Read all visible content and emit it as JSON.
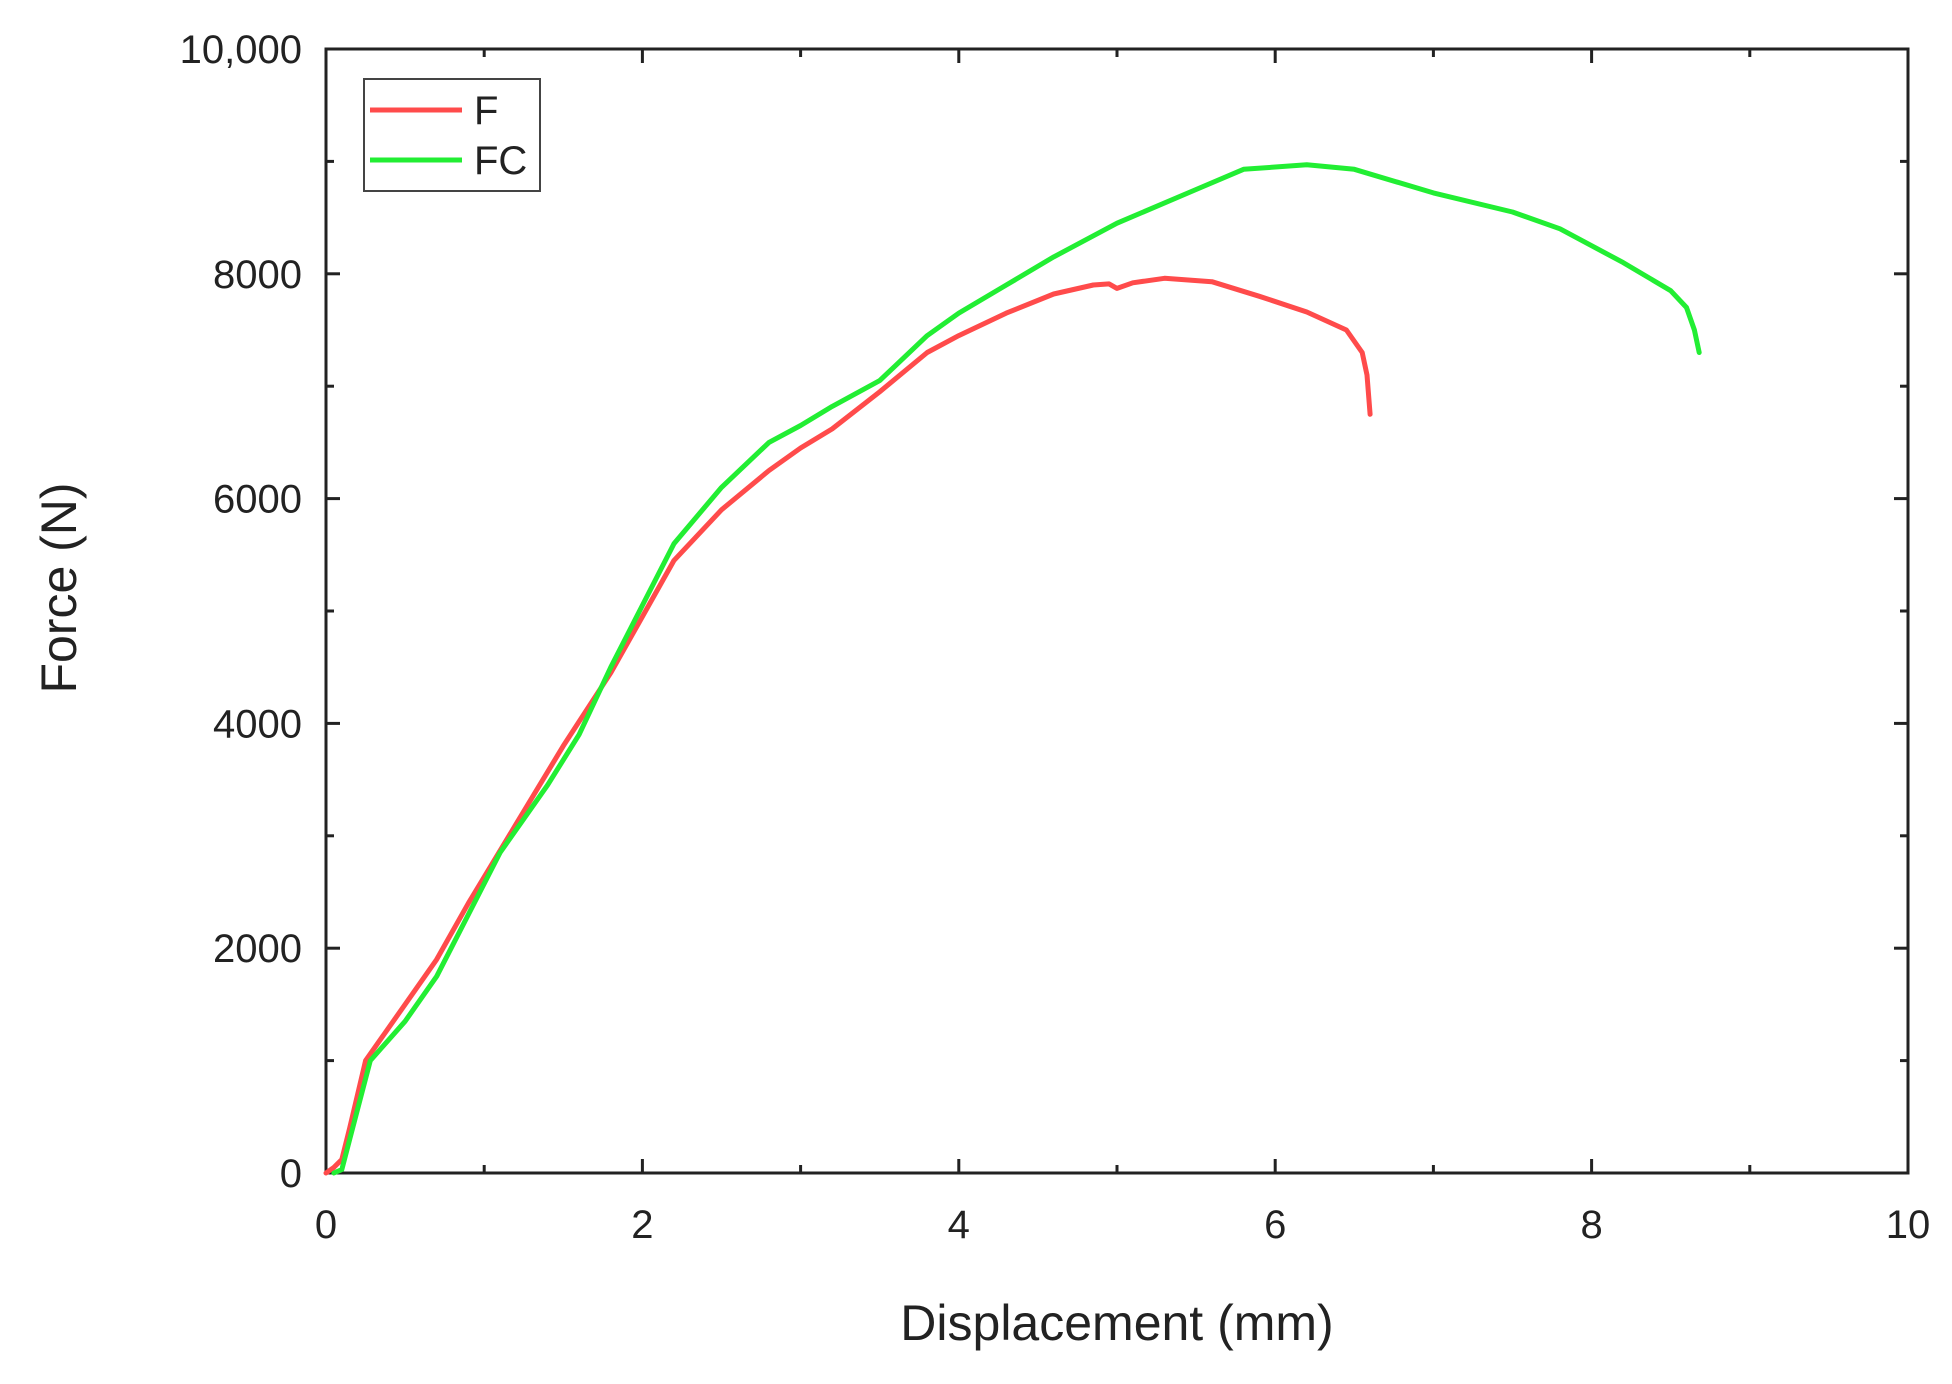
{
  "chart_data": {
    "type": "line",
    "title": "",
    "xlabel": "Displacement (mm)",
    "ylabel": "Force (N)",
    "xlim": [
      0,
      10
    ],
    "ylim": [
      0,
      10000
    ],
    "x_ticks": [
      0,
      2,
      4,
      6,
      8,
      10
    ],
    "x_tick_labels": [
      "0",
      "2",
      "4",
      "6",
      "8",
      "10"
    ],
    "y_ticks": [
      0,
      2000,
      4000,
      6000,
      8000,
      10000
    ],
    "y_tick_labels": [
      "0",
      "2000",
      "4000",
      "6000",
      "8000",
      "10,000"
    ],
    "grid": false,
    "legend_position": "top-left",
    "series": [
      {
        "name": "F",
        "color": "#ff4b4b",
        "points": [
          [
            0,
            0
          ],
          [
            0.05,
            50
          ],
          [
            0.1,
            120
          ],
          [
            0.15,
            400
          ],
          [
            0.25,
            1000
          ],
          [
            0.5,
            1500
          ],
          [
            0.7,
            1900
          ],
          [
            0.9,
            2400
          ],
          [
            1.2,
            3100
          ],
          [
            1.5,
            3800
          ],
          [
            1.8,
            4450
          ],
          [
            2.0,
            4950
          ],
          [
            2.2,
            5450
          ],
          [
            2.5,
            5900
          ],
          [
            2.8,
            6250
          ],
          [
            3.0,
            6450
          ],
          [
            3.2,
            6620
          ],
          [
            3.5,
            6950
          ],
          [
            3.8,
            7300
          ],
          [
            4.0,
            7450
          ],
          [
            4.3,
            7650
          ],
          [
            4.6,
            7820
          ],
          [
            4.85,
            7900
          ],
          [
            4.95,
            7910
          ],
          [
            5.0,
            7870
          ],
          [
            5.1,
            7920
          ],
          [
            5.3,
            7960
          ],
          [
            5.6,
            7930
          ],
          [
            5.9,
            7800
          ],
          [
            6.2,
            7660
          ],
          [
            6.45,
            7500
          ],
          [
            6.55,
            7300
          ],
          [
            6.58,
            7100
          ],
          [
            6.6,
            6750
          ]
        ]
      },
      {
        "name": "FC",
        "color": "#22ee33",
        "points": [
          [
            0.05,
            0
          ],
          [
            0.1,
            30
          ],
          [
            0.15,
            300
          ],
          [
            0.28,
            1000
          ],
          [
            0.5,
            1350
          ],
          [
            0.7,
            1750
          ],
          [
            0.9,
            2300
          ],
          [
            1.1,
            2850
          ],
          [
            1.4,
            3450
          ],
          [
            1.6,
            3900
          ],
          [
            1.8,
            4500
          ],
          [
            2.0,
            5050
          ],
          [
            2.2,
            5600
          ],
          [
            2.5,
            6100
          ],
          [
            2.8,
            6500
          ],
          [
            3.0,
            6650
          ],
          [
            3.2,
            6820
          ],
          [
            3.5,
            7050
          ],
          [
            3.8,
            7450
          ],
          [
            4.0,
            7650
          ],
          [
            4.3,
            7900
          ],
          [
            4.6,
            8150
          ],
          [
            5.0,
            8450
          ],
          [
            5.5,
            8750
          ],
          [
            5.8,
            8930
          ],
          [
            6.2,
            8970
          ],
          [
            6.5,
            8930
          ],
          [
            7.0,
            8720
          ],
          [
            7.5,
            8550
          ],
          [
            7.8,
            8400
          ],
          [
            8.2,
            8100
          ],
          [
            8.5,
            7850
          ],
          [
            8.6,
            7700
          ],
          [
            8.65,
            7500
          ],
          [
            8.68,
            7300
          ]
        ]
      }
    ]
  }
}
